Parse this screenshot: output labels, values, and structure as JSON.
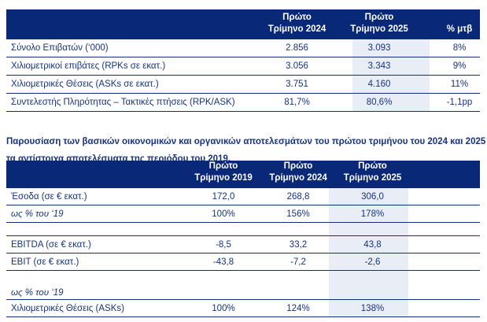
{
  "colors": {
    "navy": "#0a2878",
    "ink": "#17337f",
    "line": "#12307e",
    "highlight": "#e9edf6",
    "header_text": "#ffffff"
  },
  "paragraph": {
    "line1": "Παρουσίαση των βασικών οικονομικών και οργανικών αποτελεσμάτων του πρώτου τριμήνου του 2024 και 2025 σε σχέση με",
    "line2": "τα αντίστοιχα αποτελέσματα της περιόδου του 2019."
  },
  "table1": {
    "name": "traffic-table",
    "columns": [
      {
        "id": "label",
        "line1": "",
        "line2": ""
      },
      {
        "id": "q1-2024",
        "line1": "Πρώτο",
        "line2": "Τρίμηνο 2024"
      },
      {
        "id": "q1-2025",
        "line1": "Πρώτο",
        "line2": "Τρίμηνο 2025",
        "highlight": true
      },
      {
        "id": "pct-change",
        "line1": "",
        "line2": "% μτβ"
      }
    ],
    "rows": [
      {
        "cells": [
          "Σύνολο Επιβατών (‘000)",
          "2.856",
          "3.093",
          "8%"
        ]
      },
      {
        "cells": [
          "Χιλιομετρικοί επιβάτες (RPKs σε εκατ.)",
          "3.056",
          "3.343",
          "9%"
        ]
      },
      {
        "cells": [
          "Χιλιομετρικές Θέσεις (ASKs σε εκατ.)",
          "3.751",
          "4.160",
          "11%"
        ]
      },
      {
        "cells": [
          "Συντελεστής Πληρότητας – Τακτικές πτήσεις (RPK/ASK)",
          "81,7%",
          "80,6%",
          "-1,1pp"
        ]
      }
    ]
  },
  "table2": {
    "name": "financial-comparison-table",
    "columns": [
      {
        "id": "label",
        "line1": "",
        "line2": ""
      },
      {
        "id": "q1-2019",
        "line1": "Πρώτο",
        "line2": "Τρίμηνο 2019"
      },
      {
        "id": "q1-2024",
        "line1": "Πρώτο",
        "line2": "Τρίμηνο 2024"
      },
      {
        "id": "q1-2025",
        "line1": "Πρώτο",
        "line2": "Τρίμηνο 2025",
        "highlight": true
      },
      {
        "id": "filler",
        "line1": "",
        "line2": ""
      }
    ],
    "rows": [
      {
        "cells": [
          "Έσοδα (σε € εκατ.)",
          "172,0",
          "268,8",
          "306,0",
          ""
        ]
      },
      {
        "italic_label": true,
        "cells": [
          "ως % του ‘19",
          "100%",
          "156%",
          "178%",
          ""
        ]
      },
      {
        "kind": "spacer",
        "border": true,
        "cells": [
          "",
          "",
          "",
          "",
          ""
        ]
      },
      {
        "cells": [
          "EBITDA (σε € εκατ.)",
          "-8,5",
          "33,2",
          "43,8",
          ""
        ]
      },
      {
        "cells": [
          "EBIT (σε € εκατ.)",
          "-43,8",
          "-7,2",
          "-2,6",
          ""
        ]
      },
      {
        "kind": "spacer2",
        "border": false,
        "cells": [
          "",
          "",
          "",
          "",
          ""
        ]
      },
      {
        "kind": "subhead",
        "italic_label": true,
        "cells": [
          "ως % του ‘19",
          "",
          "",
          "",
          ""
        ]
      },
      {
        "cells": [
          "Χιλιομετρικές Θέσεις (ASKs)",
          "100%",
          "124%",
          "138%",
          ""
        ]
      }
    ]
  }
}
